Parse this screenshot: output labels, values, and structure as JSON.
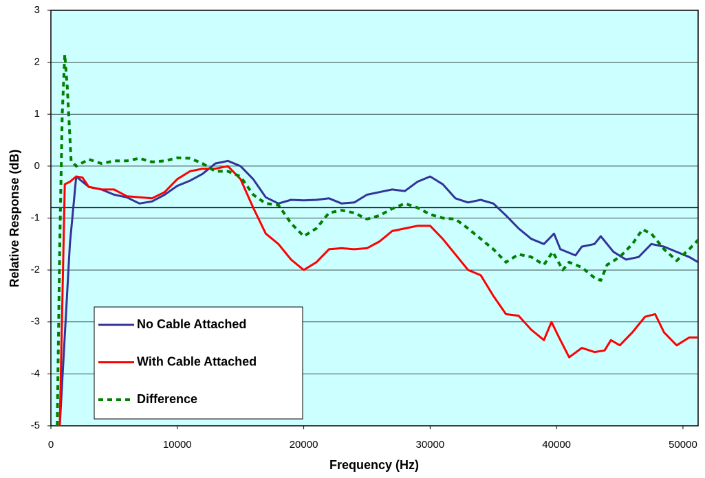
{
  "chart_data": {
    "type": "line",
    "x_label": "Frequency (Hz)",
    "y_label": "Relative Response (dB)",
    "xlim": [
      0,
      51200
    ],
    "ylim": [
      -5,
      3
    ],
    "xticks": [
      0,
      10000,
      20000,
      30000,
      40000,
      50000
    ],
    "yticks": [
      -5,
      -4,
      -3,
      -2,
      -1,
      0,
      1,
      2,
      3
    ],
    "grid": true,
    "reference_line": -0.8,
    "legend": "lower left",
    "series": [
      {
        "name": "No Cable Attached",
        "color": "#333399",
        "dash": false,
        "x": [
          700,
          1500,
          2000,
          2500,
          3000,
          4000,
          5000,
          6000,
          7000,
          8000,
          9000,
          10000,
          11000,
          12000,
          13000,
          14000,
          15000,
          16000,
          17000,
          18000,
          19000,
          20000,
          21000,
          22000,
          23000,
          24000,
          25000,
          26000,
          27000,
          28000,
          29000,
          30000,
          31000,
          32000,
          33000,
          34000,
          35000,
          36000,
          37000,
          38000,
          39000,
          39800,
          40300,
          41500,
          42000,
          43000,
          43500,
          44500,
          45500,
          46500,
          47500,
          48500,
          49500,
          50500,
          51200
        ],
        "values": [
          -5,
          -1.5,
          -0.2,
          -0.3,
          -0.4,
          -0.45,
          -0.55,
          -0.6,
          -0.72,
          -0.68,
          -0.55,
          -0.38,
          -0.28,
          -0.15,
          0.05,
          0.1,
          0,
          -0.25,
          -0.6,
          -0.72,
          -0.65,
          -0.66,
          -0.65,
          -0.62,
          -0.72,
          -0.7,
          -0.55,
          -0.5,
          -0.45,
          -0.48,
          -0.3,
          -0.2,
          -0.35,
          -0.62,
          -0.7,
          -0.65,
          -0.72,
          -0.95,
          -1.2,
          -1.4,
          -1.5,
          -1.3,
          -1.6,
          -1.72,
          -1.55,
          -1.5,
          -1.35,
          -1.65,
          -1.8,
          -1.75,
          -1.5,
          -1.55,
          -1.65,
          -1.75,
          -1.85
        ]
      },
      {
        "name": "With Cable Attached",
        "color": "#ff0000",
        "dash": false,
        "x": [
          700,
          1100,
          1500,
          2000,
          2500,
          3000,
          4000,
          5000,
          6000,
          7000,
          8000,
          9000,
          10000,
          11000,
          12000,
          13000,
          14000,
          15000,
          16000,
          17000,
          18000,
          19000,
          20000,
          21000,
          22000,
          23000,
          24000,
          25000,
          26000,
          27000,
          28000,
          29000,
          30000,
          31000,
          32000,
          33000,
          34000,
          35000,
          36000,
          37000,
          38000,
          39000,
          39600,
          40200,
          41000,
          42000,
          43000,
          43800,
          44300,
          45000,
          46000,
          47000,
          47800,
          48500,
          49500,
          50500,
          51200
        ],
        "values": [
          -5,
          -0.35,
          -0.3,
          -0.2,
          -0.22,
          -0.4,
          -0.45,
          -0.45,
          -0.58,
          -0.6,
          -0.62,
          -0.5,
          -0.25,
          -0.1,
          -0.05,
          -0.05,
          0,
          -0.25,
          -0.8,
          -1.3,
          -1.5,
          -1.8,
          -2,
          -1.85,
          -1.6,
          -1.58,
          -1.6,
          -1.58,
          -1.45,
          -1.25,
          -1.2,
          -1.15,
          -1.15,
          -1.4,
          -1.7,
          -2,
          -2.1,
          -2.5,
          -2.85,
          -2.88,
          -3.15,
          -3.35,
          -3,
          -3.3,
          -3.68,
          -3.5,
          -3.58,
          -3.55,
          -3.35,
          -3.45,
          -3.2,
          -2.9,
          -2.85,
          -3.2,
          -3.45,
          -3.3,
          -3.3
        ]
      },
      {
        "name": "Difference",
        "color": "#008000",
        "dash": true,
        "x": [
          500,
          700,
          900,
          1100,
          1300,
          1600,
          2000,
          3000,
          4000,
          5000,
          6000,
          7000,
          8000,
          9000,
          10000,
          11000,
          12000,
          13000,
          14000,
          15000,
          16000,
          17000,
          18000,
          19000,
          20000,
          21000,
          22000,
          23000,
          24000,
          25000,
          26000,
          27000,
          28000,
          29000,
          30000,
          31000,
          32000,
          33000,
          34000,
          35000,
          36000,
          37000,
          38000,
          39000,
          39700,
          40500,
          41000,
          42000,
          43000,
          43500,
          44000,
          45000,
          46000,
          46800,
          47500,
          48500,
          49500,
          50500,
          51200
        ],
        "values": [
          -5,
          -1.5,
          1,
          2.15,
          1.5,
          0.1,
          0,
          0.13,
          0.05,
          0.1,
          0.1,
          0.15,
          0.08,
          0.1,
          0.16,
          0.15,
          0.05,
          -0.1,
          -0.1,
          -0.2,
          -0.55,
          -0.72,
          -0.75,
          -1.1,
          -1.35,
          -1.2,
          -0.9,
          -0.85,
          -0.9,
          -1.02,
          -0.95,
          -0.82,
          -0.72,
          -0.8,
          -0.93,
          -1,
          -1.02,
          -1.2,
          -1.4,
          -1.6,
          -1.85,
          -1.7,
          -1.75,
          -1.9,
          -1.65,
          -2,
          -1.85,
          -1.95,
          -2.15,
          -2.2,
          -1.9,
          -1.75,
          -1.5,
          -1.22,
          -1.3,
          -1.6,
          -1.82,
          -1.6,
          -1.42
        ]
      }
    ]
  }
}
